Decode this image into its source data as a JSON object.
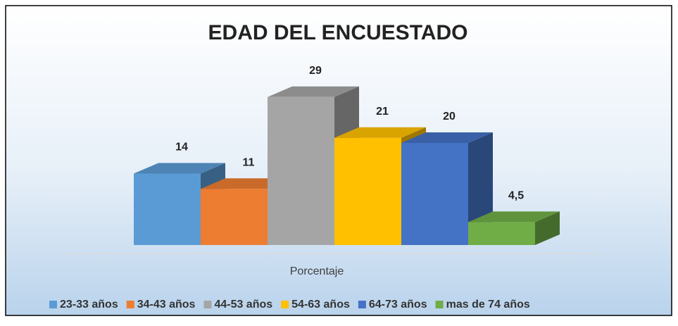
{
  "chart_data": {
    "type": "bar3d",
    "title": "EDAD DEL ENCUESTADO",
    "categories": [
      "Porcentaje"
    ],
    "series": [
      {
        "name": "23-33 años",
        "color": "#5b9bd5",
        "values": [
          14
        ]
      },
      {
        "name": "34-43 años",
        "color": "#ed7d31",
        "values": [
          11
        ]
      },
      {
        "name": "44-53 años",
        "color": "#a5a5a5",
        "values": [
          29
        ]
      },
      {
        "name": "54-63 años",
        "color": "#ffc000",
        "values": [
          21
        ]
      },
      {
        "name": "64-73 años",
        "color": "#4472c4",
        "values": [
          20
        ]
      },
      {
        "name": "mas de 74 años",
        "color": "#70ad47",
        "values": [
          4.5
        ],
        "value_labels": [
          "4,5"
        ]
      }
    ],
    "legend": "bottom"
  }
}
